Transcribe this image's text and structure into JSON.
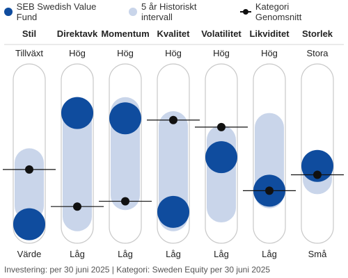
{
  "legend": {
    "fund": "SEB Swedish Value Fund",
    "range": "5 år Historiskt intervall",
    "avg": "Kategori Genomsnitt"
  },
  "colors": {
    "fund": "#0f4c9e",
    "range": "#c9d5ea",
    "avg": "#111111",
    "track_border": "#c8c8c8"
  },
  "chart_data": {
    "type": "range-dot",
    "scale": [
      0,
      1
    ],
    "categories": [
      {
        "name": "Stil",
        "top_label": "Tillväxt",
        "bottom_label": "Värde",
        "range": [
          0.12,
          0.53
        ],
        "fund": 0.1,
        "avg": 0.41
      },
      {
        "name": "Direktavk",
        "top_label": "Hög",
        "bottom_label": "Låg",
        "range": [
          0.06,
          0.82
        ],
        "fund": 0.73,
        "avg": 0.2
      },
      {
        "name": "Momentum",
        "top_label": "Hög",
        "bottom_label": "Låg",
        "range": [
          0.18,
          0.82
        ],
        "fund": 0.7,
        "avg": 0.23
      },
      {
        "name": "Kvalitet",
        "top_label": "Hög",
        "bottom_label": "Låg",
        "range": [
          0.06,
          0.74
        ],
        "fund": 0.17,
        "avg": 0.69
      },
      {
        "name": "Volatilitet",
        "top_label": "Hög",
        "bottom_label": "Låg",
        "range": [
          0.11,
          0.66
        ],
        "fund": 0.48,
        "avg": 0.65
      },
      {
        "name": "Likviditet",
        "top_label": "Hög",
        "bottom_label": "Låg",
        "range": [
          0.19,
          0.73
        ],
        "fund": 0.29,
        "avg": 0.29
      },
      {
        "name": "Storlek",
        "top_label": "Stora",
        "bottom_label": "Små",
        "range": [
          0.27,
          0.51
        ],
        "fund": 0.43,
        "avg": 0.38
      }
    ]
  },
  "footer": "Investering: per 30 juni 2025 | Kategori: Sweden Equity per 30 juni 2025"
}
